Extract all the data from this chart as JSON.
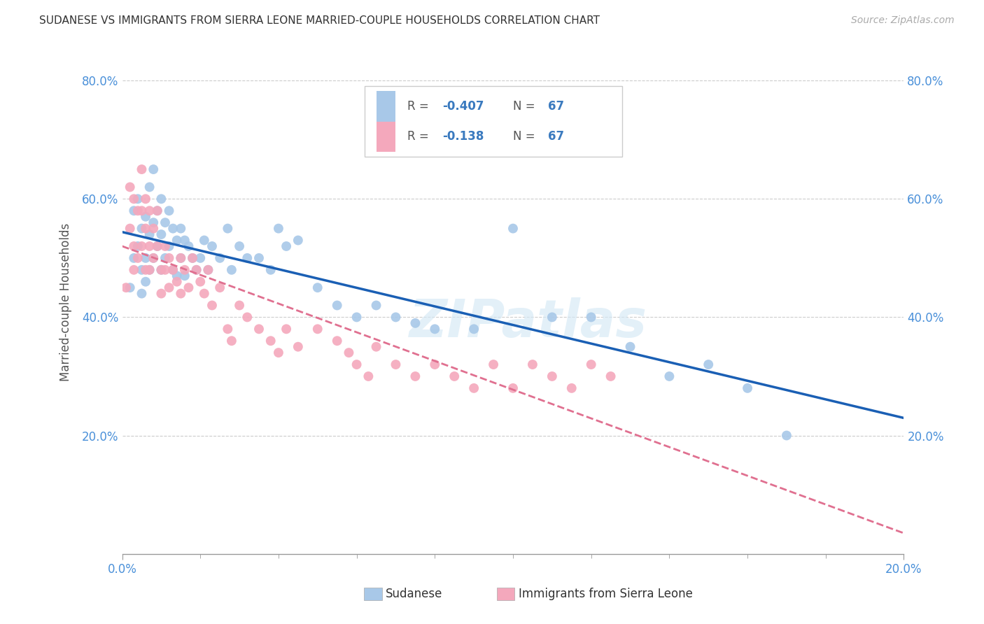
{
  "title": "SUDANESE VS IMMIGRANTS FROM SIERRA LEONE MARRIED-COUPLE HOUSEHOLDS CORRELATION CHART",
  "source": "Source: ZipAtlas.com",
  "ylabel": "Married-couple Households",
  "xlim": [
    0.0,
    0.2
  ],
  "ylim": [
    0.0,
    0.85
  ],
  "x_ticks": [
    0.0,
    0.2
  ],
  "x_tick_labels": [
    "0.0%",
    "20.0%"
  ],
  "y_ticks": [
    0.2,
    0.4,
    0.6,
    0.8
  ],
  "y_tick_labels": [
    "20.0%",
    "40.0%",
    "60.0%",
    "80.0%"
  ],
  "sudanese_color": "#a8c8e8",
  "sierra_leone_color": "#f4a8bc",
  "line_sudanese_color": "#1a5fb4",
  "line_sierra_leone_color": "#e07090",
  "watermark": "ZIPatlas",
  "sudanese_x": [
    0.002,
    0.003,
    0.003,
    0.004,
    0.004,
    0.005,
    0.005,
    0.005,
    0.006,
    0.006,
    0.006,
    0.007,
    0.007,
    0.007,
    0.008,
    0.008,
    0.008,
    0.009,
    0.009,
    0.01,
    0.01,
    0.01,
    0.011,
    0.011,
    0.012,
    0.012,
    0.013,
    0.013,
    0.014,
    0.014,
    0.015,
    0.015,
    0.016,
    0.016,
    0.017,
    0.018,
    0.019,
    0.02,
    0.021,
    0.022,
    0.023,
    0.025,
    0.027,
    0.028,
    0.03,
    0.032,
    0.035,
    0.038,
    0.04,
    0.042,
    0.045,
    0.05,
    0.055,
    0.06,
    0.065,
    0.07,
    0.075,
    0.08,
    0.09,
    0.1,
    0.11,
    0.12,
    0.13,
    0.14,
    0.15,
    0.16,
    0.17
  ],
  "sudanese_y": [
    0.45,
    0.58,
    0.5,
    0.6,
    0.52,
    0.55,
    0.48,
    0.44,
    0.57,
    0.5,
    0.46,
    0.62,
    0.54,
    0.48,
    0.65,
    0.56,
    0.5,
    0.58,
    0.52,
    0.6,
    0.54,
    0.48,
    0.56,
    0.5,
    0.58,
    0.52,
    0.55,
    0.48,
    0.53,
    0.47,
    0.55,
    0.5,
    0.53,
    0.47,
    0.52,
    0.5,
    0.48,
    0.5,
    0.53,
    0.48,
    0.52,
    0.5,
    0.55,
    0.48,
    0.52,
    0.5,
    0.5,
    0.48,
    0.55,
    0.52,
    0.53,
    0.45,
    0.42,
    0.4,
    0.42,
    0.4,
    0.39,
    0.38,
    0.38,
    0.55,
    0.4,
    0.4,
    0.35,
    0.3,
    0.32,
    0.28,
    0.2
  ],
  "sierra_leone_x": [
    0.001,
    0.002,
    0.002,
    0.003,
    0.003,
    0.003,
    0.004,
    0.004,
    0.005,
    0.005,
    0.005,
    0.006,
    0.006,
    0.006,
    0.007,
    0.007,
    0.007,
    0.008,
    0.008,
    0.009,
    0.009,
    0.01,
    0.01,
    0.011,
    0.011,
    0.012,
    0.012,
    0.013,
    0.014,
    0.015,
    0.015,
    0.016,
    0.017,
    0.018,
    0.019,
    0.02,
    0.021,
    0.022,
    0.023,
    0.025,
    0.027,
    0.028,
    0.03,
    0.032,
    0.035,
    0.038,
    0.04,
    0.042,
    0.045,
    0.05,
    0.055,
    0.058,
    0.06,
    0.063,
    0.065,
    0.07,
    0.075,
    0.08,
    0.085,
    0.09,
    0.095,
    0.1,
    0.105,
    0.11,
    0.115,
    0.12,
    0.125
  ],
  "sierra_leone_y": [
    0.45,
    0.62,
    0.55,
    0.6,
    0.52,
    0.48,
    0.58,
    0.5,
    0.65,
    0.58,
    0.52,
    0.6,
    0.55,
    0.48,
    0.58,
    0.52,
    0.48,
    0.55,
    0.5,
    0.58,
    0.52,
    0.48,
    0.44,
    0.52,
    0.48,
    0.5,
    0.45,
    0.48,
    0.46,
    0.44,
    0.5,
    0.48,
    0.45,
    0.5,
    0.48,
    0.46,
    0.44,
    0.48,
    0.42,
    0.45,
    0.38,
    0.36,
    0.42,
    0.4,
    0.38,
    0.36,
    0.34,
    0.38,
    0.35,
    0.38,
    0.36,
    0.34,
    0.32,
    0.3,
    0.35,
    0.32,
    0.3,
    0.32,
    0.3,
    0.28,
    0.32,
    0.28,
    0.32,
    0.3,
    0.28,
    0.32,
    0.3
  ]
}
